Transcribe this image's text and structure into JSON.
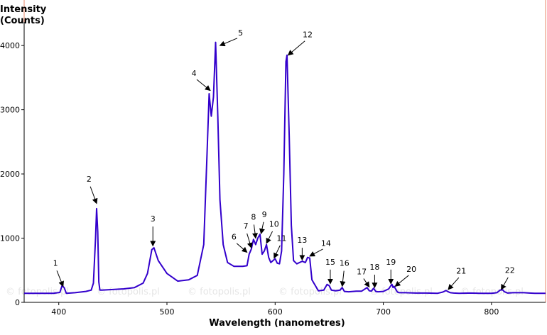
{
  "chart_data": {
    "type": "line",
    "title": "",
    "ylabel_lines": [
      "Intensity",
      "(Counts)"
    ],
    "xlabel": "Wavelength (nanometres)",
    "xlim": [
      368,
      850
    ],
    "ylim": [
      0,
      4300
    ],
    "xticks": [
      400,
      500,
      600,
      700,
      800
    ],
    "yticks": [
      0,
      1000,
      2000,
      3000,
      4000
    ],
    "grid": false,
    "series_color": "#3300cc",
    "axis_color": "#000000",
    "border_color": "#e8876a",
    "watermark": "© fotopolis.pl",
    "series": [
      {
        "x": [
          368,
          380,
          395,
          401,
          403,
          405,
          407,
          415,
          425,
          430,
          432,
          434,
          435,
          436,
          437,
          438,
          440,
          450,
          460,
          470,
          478,
          482,
          486,
          488,
          492,
          500,
          510,
          520,
          528,
          534,
          537,
          539,
          541,
          543,
          545,
          547,
          549,
          552,
          556,
          562,
          570,
          574,
          576,
          578,
          580,
          582,
          584,
          586,
          588,
          590,
          592,
          594,
          596,
          598,
          600,
          602,
          604,
          606,
          608,
          610,
          611,
          613,
          615,
          617,
          620,
          625,
          628,
          630,
          632,
          634,
          640,
          645,
          648,
          650,
          652,
          656,
          660,
          662,
          664,
          668,
          675,
          680,
          685,
          687,
          689,
          691,
          693,
          695,
          700,
          705,
          707,
          708,
          709,
          710,
          711,
          713,
          715,
          720,
          730,
          740,
          750,
          755,
          758,
          760,
          762,
          765,
          770,
          780,
          790,
          800,
          805,
          808,
          810,
          812,
          815,
          820,
          830,
          835,
          840,
          850
        ],
        "y": [
          140,
          140,
          140,
          155,
          260,
          230,
          140,
          150,
          170,
          190,
          300,
          1000,
          1460,
          1100,
          320,
          190,
          190,
          200,
          210,
          230,
          300,
          450,
          820,
          850,
          650,
          450,
          330,
          350,
          420,
          900,
          2300,
          3250,
          2900,
          3200,
          4050,
          2900,
          1600,
          900,
          620,
          560,
          560,
          570,
          750,
          830,
          980,
          900,
          1000,
          1060,
          750,
          800,
          900,
          700,
          620,
          650,
          680,
          610,
          600,
          800,
          2000,
          3750,
          3850,
          2600,
          1200,
          650,
          600,
          640,
          620,
          700,
          690,
          350,
          180,
          190,
          280,
          260,
          190,
          180,
          190,
          230,
          170,
          165,
          175,
          175,
          230,
          180,
          175,
          220,
          170,
          165,
          170,
          210,
          260,
          280,
          230,
          250,
          220,
          160,
          150,
          150,
          145,
          145,
          140,
          160,
          185,
          165,
          150,
          145,
          140,
          145,
          140,
          140,
          150,
          190,
          200,
          165,
          145,
          150,
          150,
          145,
          140,
          140
        ]
      }
    ],
    "annotations": [
      {
        "label": "1",
        "x": 404,
        "y": 250,
        "tx": 397,
        "ty": 590
      },
      {
        "label": "2",
        "x": 435,
        "y": 1540,
        "tx": 428,
        "ty": 1900
      },
      {
        "label": "3",
        "x": 487,
        "y": 880,
        "tx": 487,
        "ty": 1280
      },
      {
        "label": "4",
        "x": 540,
        "y": 3300,
        "tx": 525,
        "ty": 3550
      },
      {
        "label": "5",
        "x": 549,
        "y": 4000,
        "tx": 568,
        "ty": 4180
      },
      {
        "label": "6",
        "x": 574,
        "y": 780,
        "tx": 562,
        "ty": 1000
      },
      {
        "label": "7",
        "x": 578,
        "y": 850,
        "tx": 573,
        "ty": 1170
      },
      {
        "label": "8",
        "x": 582,
        "y": 1000,
        "tx": 580,
        "ty": 1310
      },
      {
        "label": "9",
        "x": 587,
        "y": 1070,
        "tx": 590,
        "ty": 1350
      },
      {
        "label": "10",
        "x": 592,
        "y": 920,
        "tx": 599,
        "ty": 1200
      },
      {
        "label": "11",
        "x": 599,
        "y": 690,
        "tx": 606,
        "ty": 980
      },
      {
        "label": "12",
        "x": 612,
        "y": 3850,
        "tx": 630,
        "ty": 4150
      },
      {
        "label": "13",
        "x": 625,
        "y": 660,
        "tx": 625,
        "ty": 950
      },
      {
        "label": "14",
        "x": 632,
        "y": 720,
        "tx": 647,
        "ty": 900
      },
      {
        "label": "15",
        "x": 651,
        "y": 290,
        "tx": 651,
        "ty": 610
      },
      {
        "label": "16",
        "x": 662,
        "y": 250,
        "tx": 664,
        "ty": 590
      },
      {
        "label": "17",
        "x": 687,
        "y": 240,
        "tx": 680,
        "ty": 460
      },
      {
        "label": "18",
        "x": 692,
        "y": 230,
        "tx": 692,
        "ty": 530
      },
      {
        "label": "19",
        "x": 707,
        "y": 290,
        "tx": 707,
        "ty": 610
      },
      {
        "label": "20",
        "x": 711,
        "y": 250,
        "tx": 726,
        "ty": 500
      },
      {
        "label": "21",
        "x": 760,
        "y": 200,
        "tx": 772,
        "ty": 470
      },
      {
        "label": "22",
        "x": 809,
        "y": 200,
        "tx": 817,
        "ty": 480
      }
    ]
  }
}
